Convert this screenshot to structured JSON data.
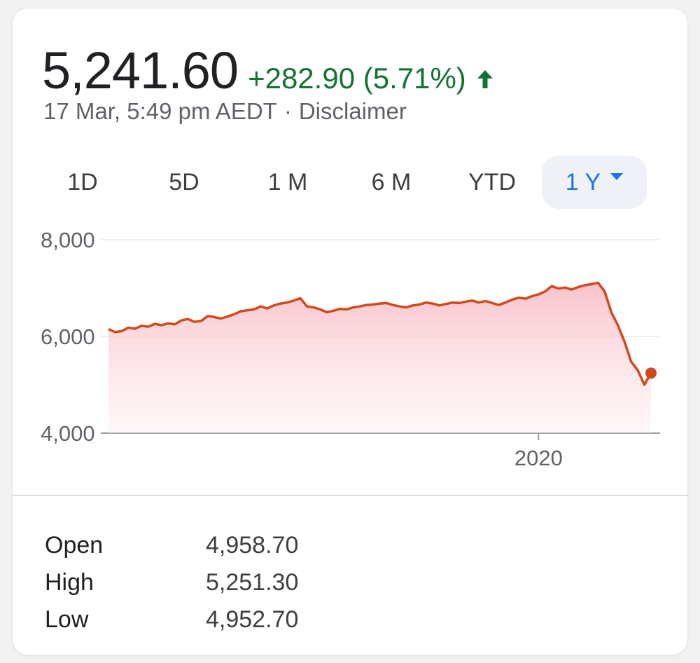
{
  "quote": {
    "price": "5,241.60",
    "change": "+282.90 (5.71%)",
    "timestamp": "17 Mar, 5:49 pm AEDT",
    "separator": "·",
    "disclaimer": "Disclaimer",
    "direction_icon": "arrow-up-icon",
    "up_color": "#137333"
  },
  "tabs": [
    {
      "label": "1D"
    },
    {
      "label": "5D"
    },
    {
      "label": "1 M"
    },
    {
      "label": "6 M"
    },
    {
      "label": "YTD"
    },
    {
      "label": "1 Y",
      "selected": true
    }
  ],
  "chart_data": {
    "type": "area",
    "y_ticks": [
      "8,000",
      "6,000",
      "4,000"
    ],
    "x_ticks": [
      "2020"
    ],
    "ylim": [
      4000,
      8000
    ],
    "grid": true,
    "line_color": "#d2491b",
    "fill_color": "#fbd0d6",
    "series": [
      {
        "values": [
          6150,
          6090,
          6110,
          6180,
          6160,
          6220,
          6200,
          6260,
          6230,
          6270,
          6250,
          6330,
          6360,
          6300,
          6320,
          6420,
          6400,
          6370,
          6410,
          6460,
          6520,
          6540,
          6560,
          6620,
          6580,
          6640,
          6680,
          6700,
          6740,
          6790,
          6620,
          6600,
          6560,
          6500,
          6530,
          6570,
          6560,
          6600,
          6620,
          6650,
          6660,
          6680,
          6690,
          6650,
          6620,
          6600,
          6640,
          6660,
          6700,
          6680,
          6640,
          6670,
          6700,
          6690,
          6720,
          6740,
          6700,
          6730,
          6690,
          6650,
          6700,
          6760,
          6800,
          6780,
          6830,
          6870,
          6930,
          7040,
          6990,
          7010,
          6970,
          7020,
          7060,
          7080,
          7110,
          6930,
          6500,
          6230,
          5890,
          5480,
          5300,
          5000,
          5241.6
        ]
      }
    ],
    "x_tick_position_index": 65,
    "last_point_marker": true
  },
  "stats": [
    {
      "label": "Open",
      "value": "4,958.70"
    },
    {
      "label": "High",
      "value": "5,251.30"
    },
    {
      "label": "Low",
      "value": "4,952.70"
    }
  ]
}
